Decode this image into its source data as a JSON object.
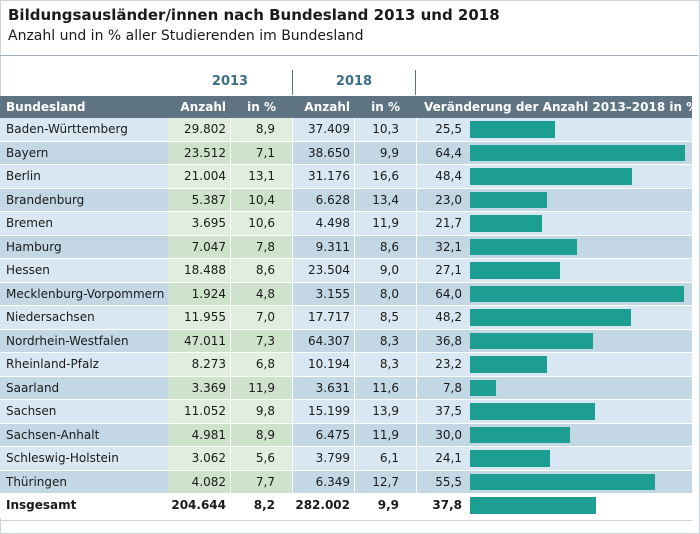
{
  "title": "Bildungsausländer/innen nach Bundesland 2013 und 2018",
  "subtitle": "Anzahl und in % aller Studierenden im Bundesland",
  "years": [
    "2013",
    "2018"
  ],
  "headers": {
    "bundesland": "Bundesland",
    "anzahl_2013": "Anzahl",
    "pct_2013": "in %",
    "anzahl_2018": "Anzahl",
    "pct_2018": "in %",
    "change": "Veränderung der Anzahl 2013–2018 in %"
  },
  "colors": {
    "header_bg": "#5f7482",
    "bar": "#1c9e93",
    "row_light_name": "#d8e7f1",
    "row_dark_name": "#c3d7e5",
    "row_light_2013": "#e0eede",
    "row_dark_2013": "#cfe3cc",
    "row_light_2018": "#d8e7f1",
    "row_dark_2018": "#c3d7e5",
    "row_light_change": "#d8e7f1",
    "row_dark_change": "#c3d7e5",
    "year_text": "#3f6f88"
  },
  "chart_data": {
    "type": "table",
    "title": "Bildungsausländer/innen nach Bundesland 2013 und 2018",
    "subtitle": "Anzahl und in % aller Studierenden im Bundesland",
    "bar_max": 64.4,
    "rows": [
      {
        "name": "Baden-Württemberg",
        "a2013": "29.802",
        "p2013": "8,9",
        "a2018": "37.409",
        "p2018": "10,3",
        "change": "25,5",
        "change_value": 25.5
      },
      {
        "name": "Bayern",
        "a2013": "23.512",
        "p2013": "7,1",
        "a2018": "38.650",
        "p2018": "9,9",
        "change": "64,4",
        "change_value": 64.4
      },
      {
        "name": "Berlin",
        "a2013": "21.004",
        "p2013": "13,1",
        "a2018": "31.176",
        "p2018": "16,6",
        "change": "48,4",
        "change_value": 48.4
      },
      {
        "name": "Brandenburg",
        "a2013": "5.387",
        "p2013": "10,4",
        "a2018": "6.628",
        "p2018": "13,4",
        "change": "23,0",
        "change_value": 23.0
      },
      {
        "name": "Bremen",
        "a2013": "3.695",
        "p2013": "10,6",
        "a2018": "4.498",
        "p2018": "11,9",
        "change": "21,7",
        "change_value": 21.7
      },
      {
        "name": "Hamburg",
        "a2013": "7.047",
        "p2013": "7,8",
        "a2018": "9.311",
        "p2018": "8,6",
        "change": "32,1",
        "change_value": 32.1
      },
      {
        "name": "Hessen",
        "a2013": "18.488",
        "p2013": "8,6",
        "a2018": "23.504",
        "p2018": "9,0",
        "change": "27,1",
        "change_value": 27.1
      },
      {
        "name": "Mecklenburg-Vorpommern",
        "a2013": "1.924",
        "p2013": "4,8",
        "a2018": "3.155",
        "p2018": "8,0",
        "change": "64,0",
        "change_value": 64.0
      },
      {
        "name": "Niedersachsen",
        "a2013": "11.955",
        "p2013": "7,0",
        "a2018": "17.717",
        "p2018": "8,5",
        "change": "48,2",
        "change_value": 48.2
      },
      {
        "name": "Nordrhein-Westfalen",
        "a2013": "47.011",
        "p2013": "7,3",
        "a2018": "64.307",
        "p2018": "8,3",
        "change": "36,8",
        "change_value": 36.8
      },
      {
        "name": "Rheinland-Pfalz",
        "a2013": "8.273",
        "p2013": "6,8",
        "a2018": "10.194",
        "p2018": "8,3",
        "change": "23,2",
        "change_value": 23.2
      },
      {
        "name": "Saarland",
        "a2013": "3.369",
        "p2013": "11,9",
        "a2018": "3.631",
        "p2018": "11,6",
        "change": "7,8",
        "change_value": 7.8
      },
      {
        "name": "Sachsen",
        "a2013": "11.052",
        "p2013": "9,8",
        "a2018": "15.199",
        "p2018": "13,9",
        "change": "37,5",
        "change_value": 37.5
      },
      {
        "name": "Sachsen-Anhalt",
        "a2013": "4.981",
        "p2013": "8,9",
        "a2018": "6.475",
        "p2018": "11,9",
        "change": "30,0",
        "change_value": 30.0
      },
      {
        "name": "Schleswig-Holstein",
        "a2013": "3.062",
        "p2013": "5,6",
        "a2018": "3.799",
        "p2018": "6,1",
        "change": "24,1",
        "change_value": 24.1
      },
      {
        "name": "Thüringen",
        "a2013": "4.082",
        "p2013": "7,7",
        "a2018": "6.349",
        "p2018": "12,7",
        "change": "55,5",
        "change_value": 55.5
      }
    ],
    "total": {
      "name": "Insgesamt",
      "a2013": "204.644",
      "p2013": "8,2",
      "a2018": "282.002",
      "p2018": "9,9",
      "change": "37,8",
      "change_value": 37.8
    }
  }
}
